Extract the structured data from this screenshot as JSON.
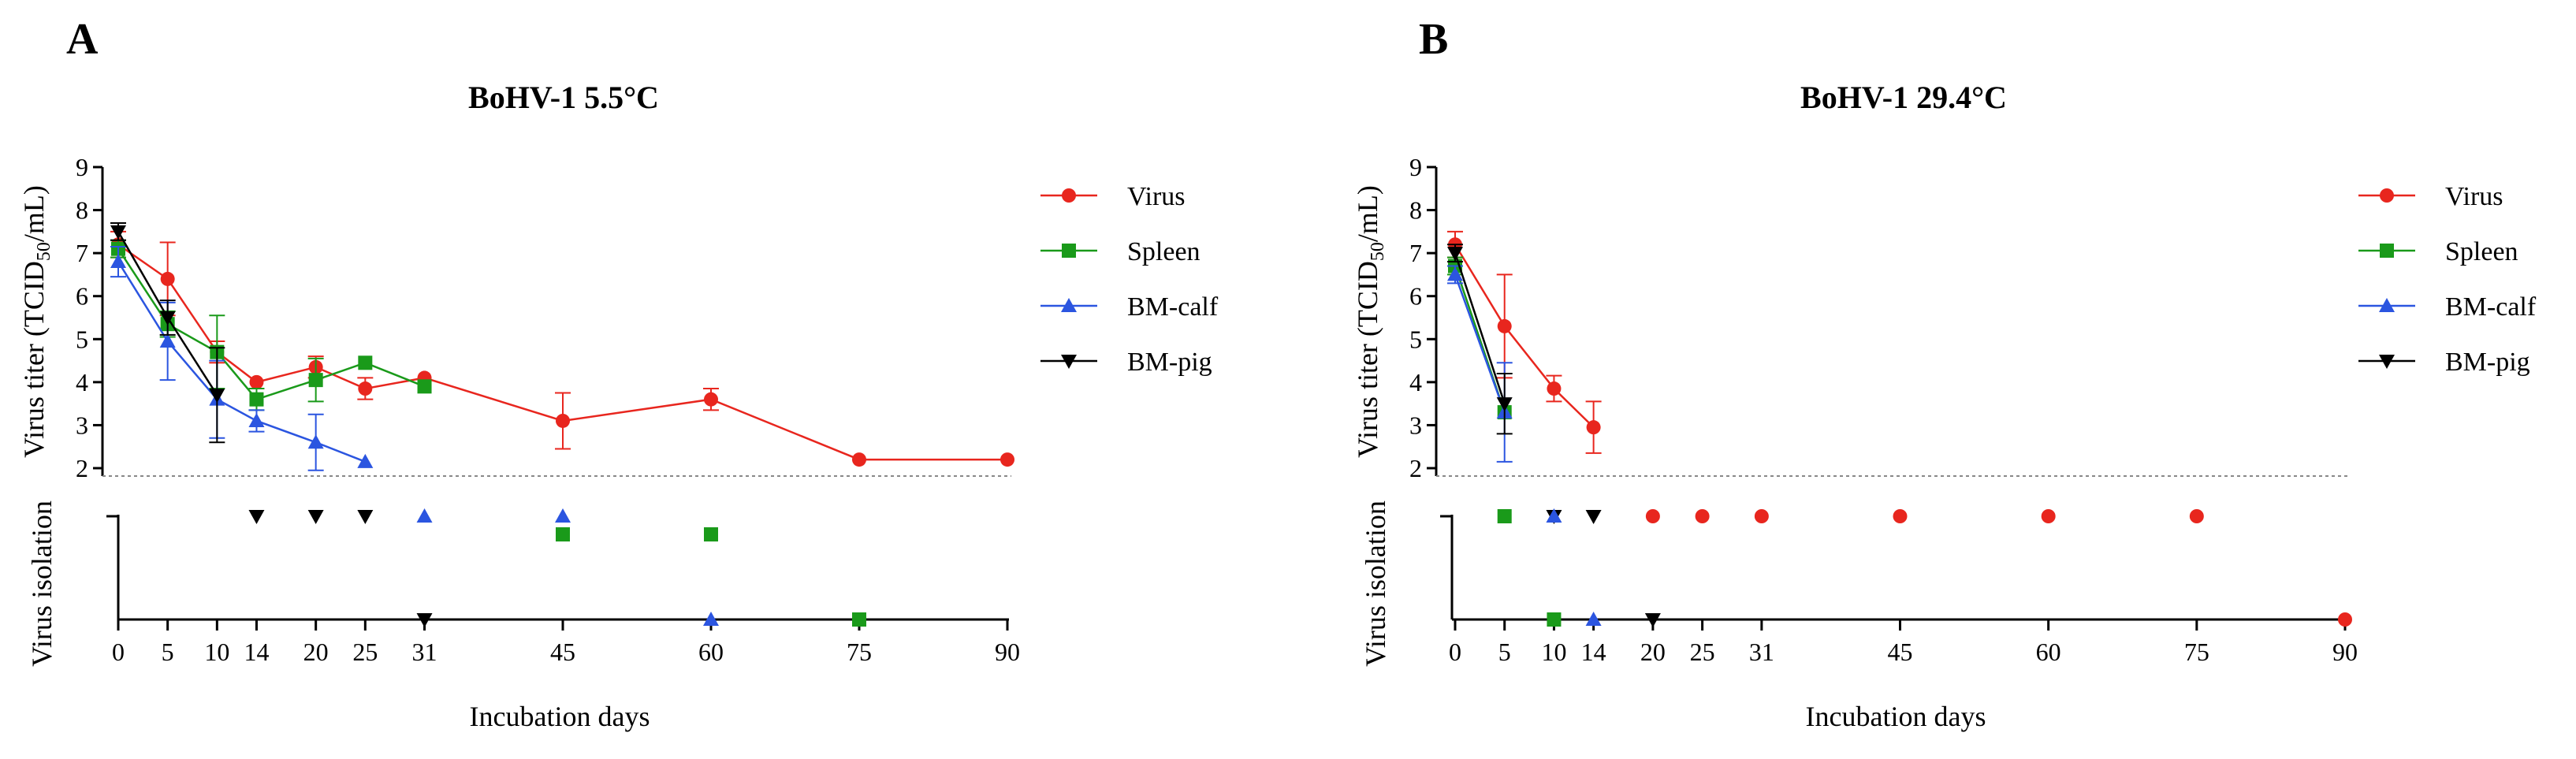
{
  "chart_data": [
    {
      "panel": "A",
      "type": "line",
      "title": "BoHV-1 5.5°C",
      "xlabel": "Incubation days",
      "ylabel_top": "Virus titer (TCID50/mL)",
      "ylabel_top_main": "Virus titer (TCID",
      "ylabel_top_sub": "50",
      "ylabel_top_end": "/mL)",
      "ylabel_bottom": "Virus isolation",
      "x_ticks": [
        0,
        5,
        10,
        14,
        20,
        25,
        31,
        45,
        60,
        75,
        90
      ],
      "y_ticks": [
        2,
        3,
        4,
        5,
        6,
        7,
        8,
        9
      ],
      "ylim": [
        1.8,
        9
      ],
      "detection_limit": 1.8,
      "legend_position": "right",
      "series": [
        {
          "name": "Virus",
          "color": "#e8261e",
          "marker": "circle",
          "x": [
            0,
            5,
            10,
            14,
            20,
            25,
            31,
            45,
            60,
            75,
            90
          ],
          "y": [
            7.2,
            6.4,
            4.7,
            4.0,
            4.35,
            3.85,
            4.1,
            3.1,
            3.6,
            2.2,
            2.2
          ],
          "err": [
            0.3,
            0.85,
            0.25,
            0.0,
            0.25,
            0.25,
            0.0,
            0.65,
            0.25,
            0.0,
            0.0
          ]
        },
        {
          "name": "Spleen",
          "color": "#1a9a1a",
          "marker": "square",
          "x": [
            0,
            5,
            10,
            14,
            20,
            25,
            31
          ],
          "y": [
            7.1,
            5.35,
            4.7,
            3.6,
            4.05,
            4.45,
            3.9
          ],
          "err": [
            0.2,
            0.3,
            0.85,
            0.25,
            0.5,
            0.0,
            0.0
          ]
        },
        {
          "name": "BM-calf",
          "color": "#2b55e0",
          "marker": "triangle-up",
          "x": [
            0,
            5,
            10,
            14,
            20,
            25
          ],
          "y": [
            6.8,
            4.95,
            3.6,
            3.1,
            2.6,
            2.15
          ],
          "err": [
            0.35,
            0.9,
            0.9,
            0.25,
            0.65,
            0.0
          ]
        },
        {
          "name": "BM-pig",
          "color": "#000000",
          "marker": "triangle-down",
          "x": [
            0,
            5,
            10
          ],
          "y": [
            7.5,
            5.5,
            3.7
          ],
          "err": [
            0.2,
            0.4,
            1.1
          ]
        }
      ],
      "isolation": [
        {
          "series": "BM-pig",
          "marker": "triangle-down",
          "color": "#000000",
          "x": 14,
          "level": "high"
        },
        {
          "series": "BM-pig",
          "marker": "triangle-down",
          "color": "#000000",
          "x": 20,
          "level": "high"
        },
        {
          "series": "BM-pig",
          "marker": "triangle-down",
          "color": "#000000",
          "x": 25,
          "level": "high"
        },
        {
          "series": "BM-calf",
          "marker": "triangle-up",
          "color": "#2b55e0",
          "x": 31,
          "level": "high"
        },
        {
          "series": "BM-calf",
          "marker": "triangle-up",
          "color": "#2b55e0",
          "x": 45,
          "level": "high"
        },
        {
          "series": "Spleen",
          "marker": "square",
          "color": "#1a9a1a",
          "x": 45,
          "level": "mid"
        },
        {
          "series": "Spleen",
          "marker": "square",
          "color": "#1a9a1a",
          "x": 60,
          "level": "mid"
        },
        {
          "series": "BM-pig",
          "marker": "triangle-down",
          "color": "#000000",
          "x": 31,
          "level": "low"
        },
        {
          "series": "BM-calf",
          "marker": "triangle-up",
          "color": "#2b55e0",
          "x": 60,
          "level": "low"
        },
        {
          "series": "Spleen",
          "marker": "square",
          "color": "#1a9a1a",
          "x": 75,
          "level": "low"
        }
      ]
    },
    {
      "panel": "B",
      "type": "line",
      "title": "BoHV-1 29.4°C",
      "xlabel": "Incubation days",
      "ylabel_top": "Virus titer (TCID50/mL)",
      "ylabel_top_main": "Virus titer (TCID",
      "ylabel_top_sub": "50",
      "ylabel_top_end": "/mL)",
      "ylabel_bottom": "Virus isolation",
      "x_ticks": [
        0,
        5,
        10,
        14,
        20,
        25,
        31,
        45,
        60,
        75,
        90
      ],
      "y_ticks": [
        2,
        3,
        4,
        5,
        6,
        7,
        8,
        9
      ],
      "ylim": [
        1.8,
        9
      ],
      "detection_limit": 1.8,
      "legend_position": "right",
      "series": [
        {
          "name": "Virus",
          "color": "#e8261e",
          "marker": "circle",
          "x": [
            0,
            5,
            10,
            14
          ],
          "y": [
            7.2,
            5.3,
            3.85,
            2.95
          ],
          "err": [
            0.3,
            1.2,
            0.3,
            0.6
          ]
        },
        {
          "name": "Spleen",
          "color": "#1a9a1a",
          "marker": "square",
          "x": [
            0,
            5
          ],
          "y": [
            6.7,
            3.3
          ],
          "err": [
            0.2,
            0.0
          ]
        },
        {
          "name": "BM-calf",
          "color": "#2b55e0",
          "marker": "triangle-up",
          "x": [
            0,
            5
          ],
          "y": [
            6.5,
            3.3
          ],
          "err": [
            0.2,
            1.15
          ]
        },
        {
          "name": "BM-pig",
          "color": "#000000",
          "marker": "triangle-down",
          "x": [
            0,
            5
          ],
          "y": [
            7.0,
            3.5
          ],
          "err": [
            0.2,
            0.7
          ]
        }
      ],
      "isolation": [
        {
          "series": "Spleen",
          "marker": "square",
          "color": "#1a9a1a",
          "x": 5,
          "level": "high"
        },
        {
          "series": "BM-pig",
          "marker": "triangle-down",
          "color": "#000000",
          "x": 10,
          "level": "high"
        },
        {
          "series": "BM-calf",
          "marker": "triangle-up",
          "color": "#2b55e0",
          "x": 10,
          "level": "high"
        },
        {
          "series": "BM-pig",
          "marker": "triangle-down",
          "color": "#000000",
          "x": 14,
          "level": "high"
        },
        {
          "series": "Virus",
          "marker": "circle",
          "color": "#e8261e",
          "x": 20,
          "level": "high"
        },
        {
          "series": "Virus",
          "marker": "circle",
          "color": "#e8261e",
          "x": 25,
          "level": "high"
        },
        {
          "series": "Virus",
          "marker": "circle",
          "color": "#e8261e",
          "x": 31,
          "level": "high"
        },
        {
          "series": "Virus",
          "marker": "circle",
          "color": "#e8261e",
          "x": 45,
          "level": "high"
        },
        {
          "series": "Virus",
          "marker": "circle",
          "color": "#e8261e",
          "x": 60,
          "level": "high"
        },
        {
          "series": "Virus",
          "marker": "circle",
          "color": "#e8261e",
          "x": 75,
          "level": "high"
        },
        {
          "series": "Spleen",
          "marker": "square",
          "color": "#1a9a1a",
          "x": 10,
          "level": "low"
        },
        {
          "series": "BM-calf",
          "marker": "triangle-up",
          "color": "#2b55e0",
          "x": 14,
          "level": "low"
        },
        {
          "series": "BM-pig",
          "marker": "triangle-down",
          "color": "#000000",
          "x": 20,
          "level": "low"
        },
        {
          "series": "Virus",
          "marker": "circle",
          "color": "#e8261e",
          "x": 90,
          "level": "low"
        }
      ]
    }
  ]
}
